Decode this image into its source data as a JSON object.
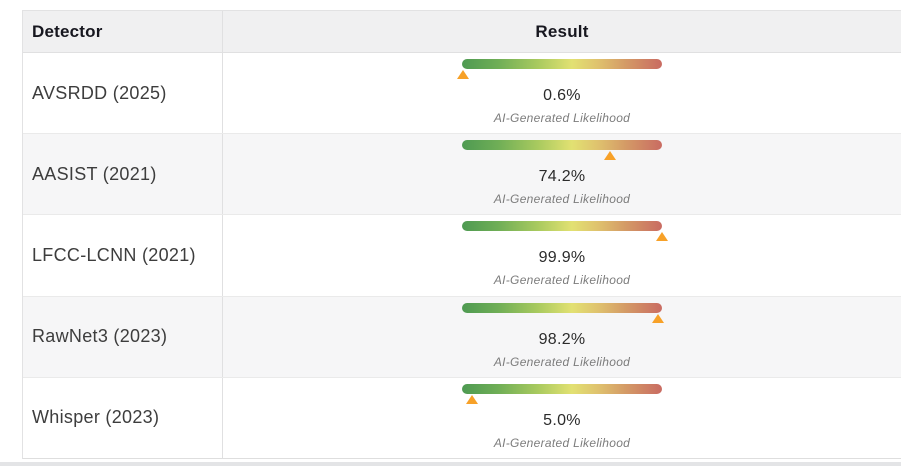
{
  "table": {
    "headers": {
      "detector": "Detector",
      "result": "Result"
    },
    "result_caption": "AI-Generated Likelihood",
    "rows": [
      {
        "detector": "AVSRDD (2025)",
        "value": "0.6%",
        "pct": 0.6
      },
      {
        "detector": "AASIST (2021)",
        "value": "74.2%",
        "pct": 74.2
      },
      {
        "detector": "LFCC-LCNN (2021)",
        "value": "99.9%",
        "pct": 99.9
      },
      {
        "detector": "RawNet3 (2023)",
        "value": "98.2%",
        "pct": 98.2
      },
      {
        "detector": "Whisper (2023)",
        "value": "5.0%",
        "pct": 5.0
      }
    ],
    "colors": {
      "marker": "#f7a128",
      "gradient_stops": [
        "#4e9a52",
        "#6fae56",
        "#a9ca5f",
        "#e2e172",
        "#dfc26e",
        "#d49a66",
        "#c96b62"
      ],
      "gradient_positions": [
        "0%",
        "18%",
        "38%",
        "55%",
        "68%",
        "82%",
        "100%"
      ],
      "header_bg": "#f0f0f1",
      "stripe_bg": "#f6f6f7"
    }
  }
}
